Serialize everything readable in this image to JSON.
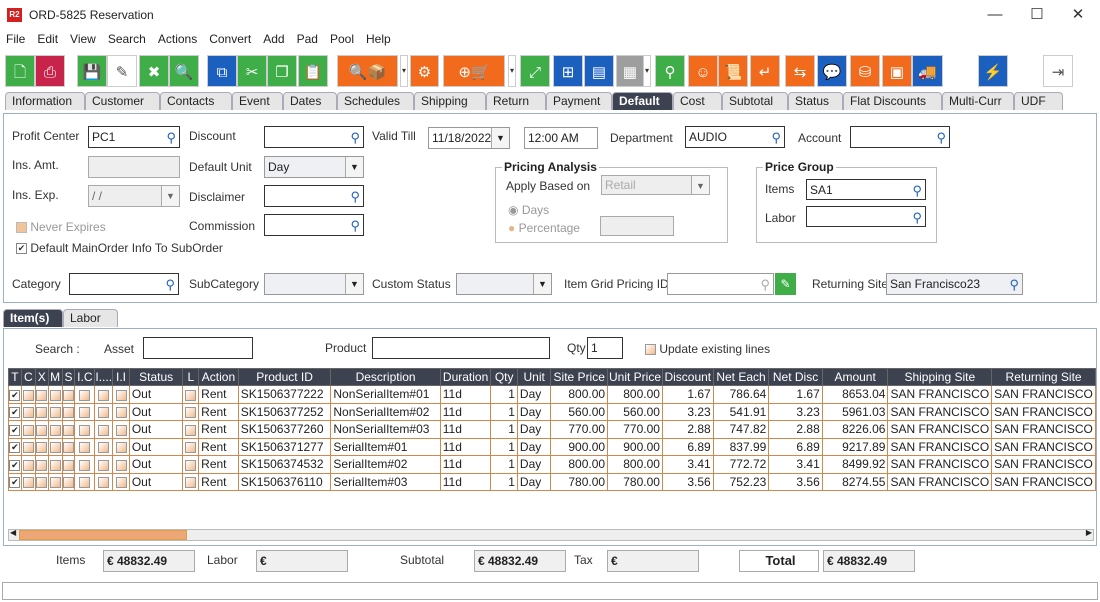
{
  "window": {
    "logo": "R2",
    "title": "ORD-5825 Reservation",
    "minimize": "—",
    "maximize": "☐",
    "close": "✕"
  },
  "menu": [
    "File",
    "Edit",
    "View",
    "Search",
    "Actions",
    "Convert",
    "Add",
    "Pad",
    "Pool",
    "Help"
  ],
  "toolbar": [
    {
      "icon": "new-document-icon",
      "glyph": "🗋"
    },
    {
      "icon": "print-icon",
      "glyph": "⎙"
    },
    {
      "icon": "save-icon",
      "glyph": "💾"
    },
    {
      "icon": "edit-pencil-icon",
      "glyph": "✎"
    },
    {
      "icon": "delete-x-icon",
      "glyph": "✖"
    },
    {
      "icon": "search-icon",
      "glyph": "🔍"
    },
    {
      "icon": "copy-blue-icon",
      "glyph": "⧉"
    },
    {
      "icon": "cut-scissors-icon",
      "glyph": "✂"
    },
    {
      "icon": "copy-icon",
      "glyph": "❐"
    },
    {
      "icon": "paste-icon",
      "glyph": "📋"
    },
    {
      "icon": "search-inventory-icon",
      "glyph": "🔍📦"
    },
    {
      "icon": "kit-cluster-icon",
      "glyph": "⚙"
    },
    {
      "icon": "add-purchase-order-cart-icon",
      "glyph": "⊕🛒"
    },
    {
      "icon": "expand-icon",
      "glyph": "⤢"
    },
    {
      "icon": "flowchart-icon",
      "glyph": "⊞"
    },
    {
      "icon": "message-icon",
      "glyph": "▤"
    },
    {
      "icon": "calendar-icon",
      "glyph": "▦"
    },
    {
      "icon": "hierarchy-icon",
      "glyph": "⚲"
    },
    {
      "icon": "smiley-icon",
      "glyph": "☺"
    },
    {
      "icon": "scroll-list-icon",
      "glyph": "📜"
    },
    {
      "icon": "return-arrow-icon",
      "glyph": "↵"
    },
    {
      "icon": "box-return-icon",
      "glyph": "⇆"
    },
    {
      "icon": "chat-zero-icon",
      "glyph": "💬"
    },
    {
      "icon": "coins-add-icon",
      "glyph": "⛁"
    },
    {
      "icon": "safe-icon",
      "glyph": "▣"
    },
    {
      "icon": "truck-check-icon",
      "glyph": "🚚"
    },
    {
      "icon": "lightning-icon",
      "glyph": "⚡"
    },
    {
      "icon": "exit-icon",
      "glyph": "⇥"
    }
  ],
  "tabs": [
    "Information",
    "Customer",
    "Contacts",
    "Event",
    "Dates",
    "Schedules",
    "Shipping",
    "Return",
    "Payment",
    "Default",
    "Cost",
    "Subtotal",
    "Status",
    "Flat Discounts",
    "Multi-Curr",
    "UDF"
  ],
  "active_tab": "Default",
  "form": {
    "profit_center": {
      "label": "Profit Center",
      "value": "PC1"
    },
    "ins_amt": {
      "label": "Ins. Amt.",
      "value": ""
    },
    "ins_exp": {
      "label": "Ins. Exp.",
      "value": " / /"
    },
    "never_expires": {
      "label": "Never Expires",
      "checked": true,
      "enabled": false
    },
    "default_main_order": {
      "label": "Default MainOrder Info To SubOrder",
      "checked": true
    },
    "discount": {
      "label": "Discount",
      "value": ""
    },
    "default_unit": {
      "label": "Default Unit",
      "value": "Day"
    },
    "disclaimer": {
      "label": "Disclaimer",
      "value": ""
    },
    "commission": {
      "label": "Commission",
      "value": ""
    },
    "valid_till": {
      "label": "Valid Till",
      "date": "11/18/2022",
      "time": "12:00 AM"
    },
    "department": {
      "label": "Department",
      "value": "AUDIO"
    },
    "account": {
      "label": "Account",
      "value": ""
    },
    "pricing_analysis": {
      "title": "Pricing Analysis",
      "apply_based_on_label": "Apply Based on",
      "apply_based_on": "Retail",
      "days": "Days",
      "percentage": "Percentage",
      "percentage_value": ""
    },
    "price_group": {
      "title": "Price Group",
      "items_label": "Items",
      "items_value": "SA1",
      "labor_label": "Labor",
      "labor_value": ""
    },
    "category": {
      "label": "Category",
      "value": ""
    },
    "subcategory": {
      "label": "SubCategory",
      "value": ""
    },
    "custom_status": {
      "label": "Custom Status",
      "value": ""
    },
    "item_grid_pricing_id": {
      "label": "Item Grid Pricing ID",
      "value": ""
    },
    "returning_site": {
      "label": "Returning Site",
      "value": "San Francisco23"
    }
  },
  "subtabs": [
    "Item(s)",
    "Labor"
  ],
  "grid_search": {
    "search_label": "Search :",
    "asset_label": "Asset",
    "asset_value": "",
    "product_label": "Product",
    "product_value": "",
    "qty_label": "Qty",
    "qty_value": "1",
    "update_label": "Update existing lines",
    "update_checked": false
  },
  "grid": {
    "columns": [
      "T",
      "C",
      "X",
      "M",
      "S",
      "I.C",
      "I....",
      "I.I",
      "Status",
      "L",
      "Action",
      "Product ID",
      "Description",
      "Duration",
      "Qty",
      "Unit",
      "Site Price",
      "Unit Price",
      "Discount",
      "Net Each",
      "Net Disc",
      "Amount",
      "Shipping Site",
      "Returning Site"
    ],
    "rows": [
      [
        "Out",
        "Rent",
        "SK1506377222",
        "NonSerialItem#01",
        "11d",
        "1",
        "Day",
        "800.00",
        "800.00",
        "1.67",
        "786.64",
        "1.67",
        "8653.04",
        "SAN FRANCISCO",
        "SAN FRANCISCO"
      ],
      [
        "Out",
        "Rent",
        "SK1506377252",
        "NonSerialItem#02",
        "11d",
        "1",
        "Day",
        "560.00",
        "560.00",
        "3.23",
        "541.91",
        "3.23",
        "5961.03",
        "SAN FRANCISCO",
        "SAN FRANCISCO"
      ],
      [
        "Out",
        "Rent",
        "SK1506377260",
        "NonSerialItem#03",
        "11d",
        "1",
        "Day",
        "770.00",
        "770.00",
        "2.88",
        "747.82",
        "2.88",
        "8226.06",
        "SAN FRANCISCO",
        "SAN FRANCISCO"
      ],
      [
        "Out",
        "Rent",
        "SK1506371277",
        "SerialItem#01",
        "11d",
        "1",
        "Day",
        "900.00",
        "900.00",
        "6.89",
        "837.99",
        "6.89",
        "9217.89",
        "SAN FRANCISCO",
        "SAN FRANCISCO"
      ],
      [
        "Out",
        "Rent",
        "SK1506374532",
        "SerialItem#02",
        "11d",
        "1",
        "Day",
        "800.00",
        "800.00",
        "3.41",
        "772.72",
        "3.41",
        "8499.92",
        "SAN FRANCISCO",
        "SAN FRANCISCO"
      ],
      [
        "Out",
        "Rent",
        "SK1506376110",
        "SerialItem#03",
        "11d",
        "1",
        "Day",
        "780.00",
        "780.00",
        "3.56",
        "752.23",
        "3.56",
        "8274.55",
        "SAN FRANCISCO",
        "SAN FRANCISCO"
      ]
    ]
  },
  "totals": {
    "items_label": "Items",
    "items": "€ 48832.49",
    "labor_label": "Labor",
    "labor": "€",
    "subtotal_label": "Subtotal",
    "subtotal": "€ 48832.49",
    "tax_label": "Tax",
    "tax": "€",
    "total_label": "Total",
    "total": "€ 48832.49"
  },
  "colors": {
    "green": "#3fae49",
    "orange": "#f26b1d",
    "blue": "#1b5fbf",
    "header_dark": "#3c4250",
    "grid_border": "#d08850"
  }
}
